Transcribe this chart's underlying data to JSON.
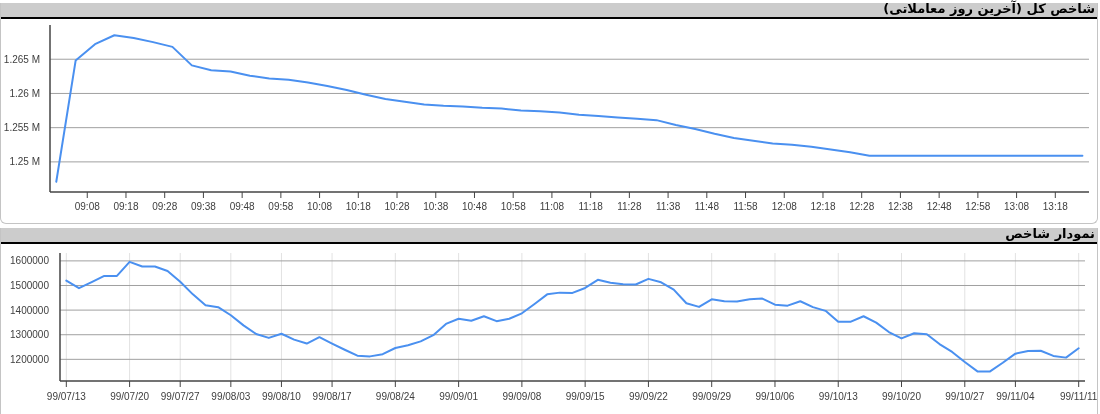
{
  "chart_data": [
    {
      "type": "line",
      "title": "شاخص کل (آخرین روز معاملاتی)",
      "x": [
        9,
        9.083333,
        9.166667,
        9.25,
        9.333333,
        9.416667,
        9.5,
        9.583333,
        9.666667,
        9.75,
        9.833333,
        9.916667,
        10,
        10.083333,
        10.166667,
        10.25,
        10.333333,
        10.416667,
        10.5,
        10.583333,
        10.666667,
        10.75,
        10.833333,
        10.916667,
        11,
        11.083333,
        11.166667,
        11.25,
        11.333333,
        11.416667,
        11.5,
        11.583333,
        11.666667,
        11.75,
        11.833333,
        11.916667,
        12,
        12.083333,
        12.166667,
        12.25,
        12.333333,
        12.416667,
        12.5,
        12.583333,
        12.666667,
        12.75,
        12.833333,
        12.916667,
        13,
        13.083333,
        13.166667,
        13.25,
        13.333333,
        13.416667
      ],
      "series": [
        {
          "color": "#4a90f0",
          "values": [
            1247100,
            1264800,
            1267200,
            1268500,
            1268100,
            1267500,
            1266800,
            1264100,
            1263400,
            1263200,
            1262600,
            1262200,
            1262000,
            1261600,
            1261100,
            1260500,
            1259800,
            1259200,
            1258800,
            1258400,
            1258200,
            1258100,
            1257900,
            1257800,
            1257500,
            1257400,
            1257200,
            1256900,
            1256700,
            1256500,
            1256300,
            1256100,
            1255400,
            1254800,
            1254100,
            1253500,
            1253100,
            1252700,
            1252500,
            1252200,
            1251800,
            1251400,
            1250900,
            1250900,
            1250900,
            1250900,
            1250900,
            1250900,
            1250900,
            1250900,
            1250900,
            1250900,
            1250900,
            1250900
          ]
        }
      ],
      "xlim": [
        8.973,
        13.445
      ],
      "xticks": [
        {
          "value": 9.133333,
          "label": "09:08"
        },
        {
          "value": 9.3,
          "label": "09:18"
        },
        {
          "value": 9.466667,
          "label": "09:28"
        },
        {
          "value": 9.633333,
          "label": "09:38"
        },
        {
          "value": 9.8,
          "label": "09:48"
        },
        {
          "value": 9.966667,
          "label": "09:58"
        },
        {
          "value": 10.133333,
          "label": "10:08"
        },
        {
          "value": 10.3,
          "label": "10:18"
        },
        {
          "value": 10.466667,
          "label": "10:28"
        },
        {
          "value": 10.633333,
          "label": "10:38"
        },
        {
          "value": 10.8,
          "label": "10:48"
        },
        {
          "value": 10.966667,
          "label": "10:58"
        },
        {
          "value": 11.133333,
          "label": "11:08"
        },
        {
          "value": 11.3,
          "label": "11:18"
        },
        {
          "value": 11.466667,
          "label": "11:28"
        },
        {
          "value": 11.633333,
          "label": "11:38"
        },
        {
          "value": 11.8,
          "label": "11:48"
        },
        {
          "value": 11.966667,
          "label": "11:58"
        },
        {
          "value": 12.133333,
          "label": "12:08"
        },
        {
          "value": 12.3,
          "label": "12:18"
        },
        {
          "value": 12.466667,
          "label": "12:28"
        },
        {
          "value": 12.633333,
          "label": "12:38"
        },
        {
          "value": 12.8,
          "label": "12:48"
        },
        {
          "value": 12.966667,
          "label": "12:58"
        },
        {
          "value": 13.133333,
          "label": "13:08"
        },
        {
          "value": 13.3,
          "label": "13:18"
        }
      ],
      "ylim": [
        1245600,
        1270000
      ],
      "yticks": [
        {
          "value": 1250000,
          "label": "1.25 M"
        },
        {
          "value": 1255000,
          "label": "1.255 M"
        },
        {
          "value": 1260000,
          "label": "1.26 M"
        },
        {
          "value": 1265000,
          "label": "1.265 M"
        }
      ],
      "grid": "y"
    },
    {
      "type": "line",
      "title": "نمودار شاخص",
      "categories": [
        "99/07/13",
        null,
        null,
        null,
        null,
        "99/07/20",
        null,
        null,
        null,
        "99/07/27",
        null,
        null,
        null,
        "99/08/03",
        null,
        null,
        null,
        "99/08/10",
        null,
        null,
        null,
        "99/08/17",
        null,
        null,
        null,
        null,
        "99/08/24",
        null,
        null,
        null,
        null,
        "99/09/01",
        null,
        null,
        null,
        null,
        "99/09/08",
        null,
        null,
        null,
        null,
        "99/09/15",
        null,
        null,
        null,
        null,
        "99/09/22",
        null,
        null,
        null,
        null,
        "99/09/29",
        null,
        null,
        null,
        null,
        "99/10/06",
        null,
        null,
        null,
        null,
        "99/10/13",
        null,
        null,
        null,
        null,
        "99/10/20",
        null,
        null,
        null,
        null,
        "99/10/27",
        null,
        null,
        null,
        "99/11/04",
        null,
        null,
        null,
        null,
        "99/11/11"
      ],
      "series": [
        {
          "color": "#4a90f0",
          "values": [
            1520000,
            1489000,
            1514000,
            1539000,
            1539000,
            1596000,
            1577000,
            1577000,
            1559000,
            1515000,
            1464000,
            1420000,
            1412000,
            1379000,
            1338000,
            1303000,
            1287000,
            1304000,
            1280000,
            1264000,
            1290000,
            1264000,
            1239000,
            1215000,
            1212000,
            1221000,
            1246000,
            1257000,
            1273000,
            1298000,
            1344000,
            1365000,
            1357000,
            1375000,
            1355000,
            1365000,
            1387000,
            1425000,
            1464000,
            1471000,
            1470000,
            1490000,
            1523000,
            1511000,
            1505000,
            1504000,
            1527000,
            1513000,
            1483000,
            1428000,
            1413000,
            1444000,
            1436000,
            1435000,
            1444000,
            1447000,
            1422000,
            1418000,
            1436000,
            1412000,
            1397000,
            1353000,
            1353000,
            1375000,
            1349000,
            1311000,
            1285000,
            1306000,
            1302000,
            1262000,
            1230000,
            1189000,
            1151000,
            1151000,
            1186000,
            1223000,
            1234000,
            1235000,
            1214000,
            1207000,
            1245000
          ]
        }
      ],
      "ylim": [
        1112000,
        1632000
      ],
      "yticks": [
        1200000,
        1300000,
        1400000,
        1500000,
        1600000
      ],
      "grid": true
    }
  ]
}
